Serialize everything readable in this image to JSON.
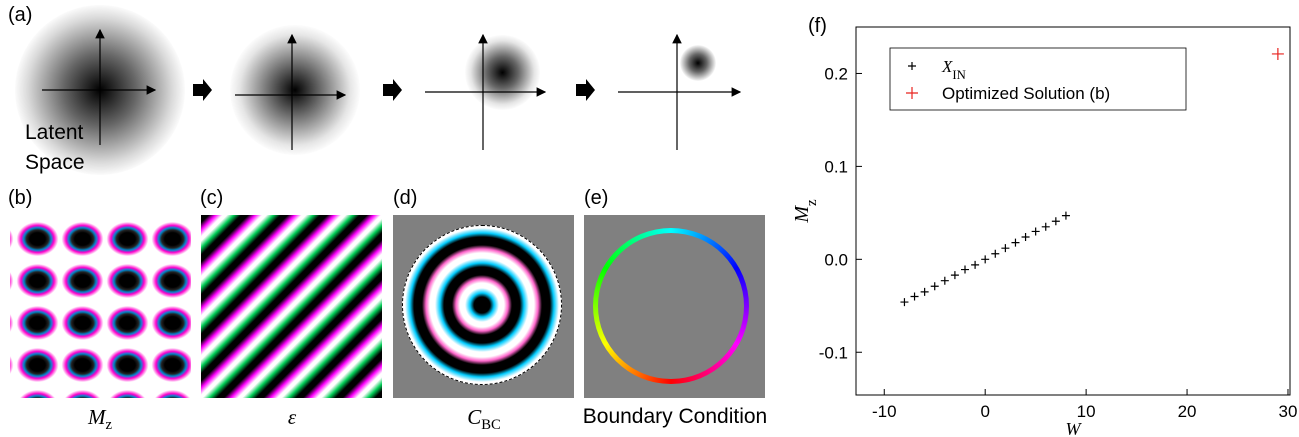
{
  "panel_labels": [
    "(a)",
    "(b)",
    "(c)",
    "(d)",
    "(e)",
    "(f)"
  ],
  "latent_space": [
    "Latent",
    "Space"
  ],
  "captions": [
    "M_z",
    "ε",
    "C_BC",
    "Boundary Condition"
  ],
  "chart_data": {
    "type": "scatter",
    "xlabel": "W",
    "ylabel": "M_z",
    "xlim": [
      -12.8,
      30.2
    ],
    "ylim": [
      -0.146,
      0.25
    ],
    "xticks": [
      -10,
      0,
      10,
      20,
      30
    ],
    "yticks": [
      -0.1,
      {
        "value": 0,
        "label": "0.0"
      },
      0.1,
      0.2
    ],
    "legend": "upper left",
    "series": [
      {
        "name": "X_IN",
        "color": "#000000",
        "x": [
          -8,
          -7,
          -6,
          -5,
          -4,
          -3,
          -2,
          -1,
          0,
          1,
          2,
          3,
          4,
          5,
          6,
          7,
          8
        ],
        "values": [
          -0.046,
          -0.04,
          -0.035,
          -0.029,
          -0.023,
          -0.017,
          -0.011,
          -0.006,
          0.0,
          0.006,
          0.012,
          0.018,
          0.024,
          0.03,
          0.035,
          0.041,
          0.047
        ]
      },
      {
        "name": "Optimized Solution (b)",
        "color": "#e8231f",
        "x": [
          29
        ],
        "values": [
          0.221
        ]
      }
    ]
  }
}
